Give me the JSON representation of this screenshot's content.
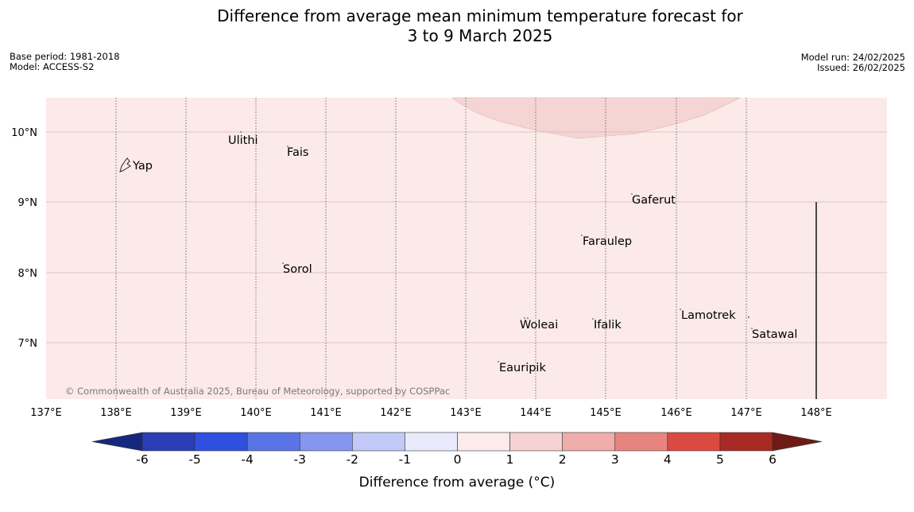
{
  "header": {
    "title_line1": "Difference from average mean minimum temperature forecast for",
    "title_line2": "3 to 9 March 2025",
    "base_period": "Base period: 1981-2018",
    "model": "Model: ACCESS-S2",
    "model_run": "Model run: 24/02/2025",
    "issued": "Issued: 26/02/2025"
  },
  "map": {
    "lon_labels": [
      "137°E",
      "138°E",
      "139°E",
      "140°E",
      "141°E",
      "142°E",
      "143°E",
      "144°E",
      "145°E",
      "146°E",
      "147°E",
      "148°E"
    ],
    "lat_labels": [
      "10°N",
      "9°N",
      "8°N",
      "7°N"
    ],
    "places": [
      {
        "name": "Yap"
      },
      {
        "name": "Ulithi"
      },
      {
        "name": "Fais"
      },
      {
        "name": "Gaferut"
      },
      {
        "name": "Faraulep"
      },
      {
        "name": "Sorol"
      },
      {
        "name": "Lamotrek"
      },
      {
        "name": "Woleai"
      },
      {
        "name": "Ifalik"
      },
      {
        "name": "Satawal"
      },
      {
        "name": "Eauripik"
      }
    ],
    "copyright": "© Commonwealth of Australia 2025, Bureau of Meteorology, supported by COSPPac",
    "background_anomaly_color": "#fbeae8",
    "patch_anomaly_color": "#f5d5d3"
  },
  "colorbar": {
    "title": "Difference from average (°C)",
    "ticks": [
      "-6",
      "-5",
      "-4",
      "-3",
      "-2",
      "-1",
      "0",
      "1",
      "2",
      "3",
      "4",
      "5",
      "6"
    ],
    "colors": [
      "#17277e",
      "#2a3db5",
      "#2f4fe0",
      "#5a74e6",
      "#8596ee",
      "#c1c9f6",
      "#e9ebfc",
      "#fdeaea",
      "#f6d3d3",
      "#efaeab",
      "#e8847e",
      "#db4a40",
      "#a92a24",
      "#6f1a16"
    ]
  }
}
